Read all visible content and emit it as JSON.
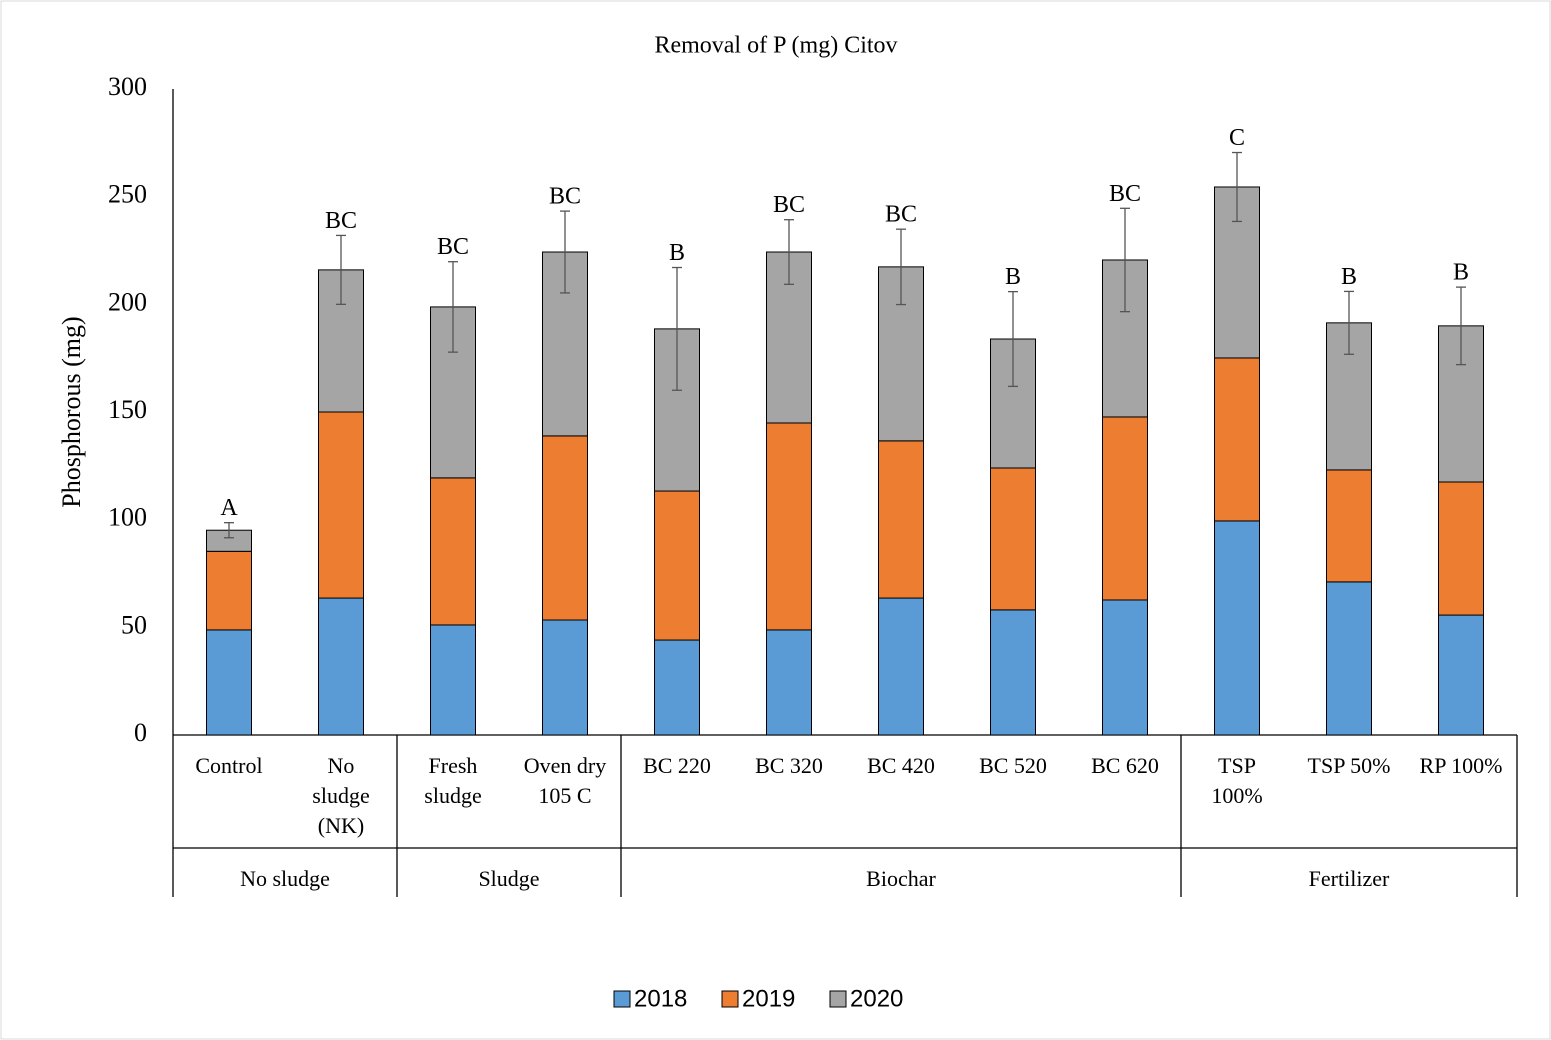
{
  "chart_data": {
    "type": "stacked_bar",
    "title": "Removal of P (mg) Citov",
    "y_label": "Phosphorous (mg)",
    "categories": [
      "Control",
      [
        "No",
        "sludge",
        "(NK)"
      ],
      [
        "Fresh",
        "sludge"
      ],
      [
        "Oven dry",
        "105 C"
      ],
      "BC 220",
      "BC 320",
      "BC 420",
      "BC 520",
      "BC 620",
      [
        "TSP",
        "100%"
      ],
      "TSP 50%",
      "RP 100%"
    ],
    "category_groups": [
      "No sludge",
      "No sludge",
      "Sludge",
      "Sludge",
      "Biochar",
      "Biochar",
      "Biochar",
      "Biochar",
      "Biochar",
      "Fertilizer",
      "Fertilizer",
      "Fertilizer"
    ],
    "series": [
      {
        "name": "2018",
        "color": "#5b9bd5",
        "values": [
          48.8,
          63.6,
          51.1,
          53.4,
          44.1,
          48.8,
          63.6,
          58.1,
          62.7,
          99.4,
          71.1,
          55.7
        ]
      },
      {
        "name": "2019",
        "color": "#ed7d31",
        "values": [
          36.5,
          86.4,
          68.3,
          85.5,
          69.2,
          96.1,
          73.0,
          65.9,
          85.0,
          75.7,
          52.0,
          61.8
        ]
      },
      {
        "name": "2020",
        "color": "#a5a5a5",
        "values": [
          9.8,
          66.0,
          79.4,
          85.4,
          75.3,
          79.4,
          80.8,
          59.9,
          72.9,
          79.4,
          68.3,
          72.5
        ]
      }
    ],
    "errors": [
      3.5,
      16,
      21,
      19,
      28.5,
      15,
      17.5,
      22,
      24,
      16,
      14.6,
      18
    ],
    "annotations": [
      "A",
      "BC",
      "BC",
      "BC",
      "B",
      "BC",
      "BC",
      "B",
      "BC",
      "C",
      "B",
      "B"
    ],
    "ylim": [
      0,
      300
    ],
    "yticks": [
      0,
      50,
      100,
      150,
      200,
      250,
      300
    ],
    "grid": false,
    "legend": "bottom"
  }
}
